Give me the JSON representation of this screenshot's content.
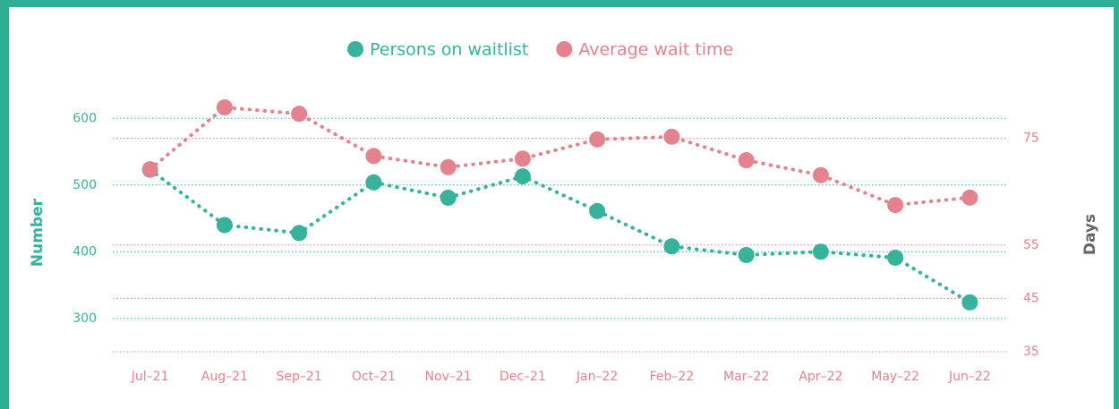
{
  "chart_data": {
    "type": "line",
    "categories": [
      "Jul–21",
      "Aug–21",
      "Sep–21",
      "Oct–21",
      "Nov–21",
      "Dec–21",
      "Jan–22",
      "Feb–22",
      "Mar–22",
      "Apr–22",
      "May–22",
      "Jun–22"
    ],
    "series": [
      {
        "name": "Persons on waitlist",
        "color": "#36b39a",
        "values": [
          523,
          440,
          428,
          504,
          481,
          513,
          461,
          408,
          395,
          400,
          391,
          324
        ]
      },
      {
        "name": "Average wait time",
        "color": "#e4828e",
        "axis": "y2",
        "values": [
          69.2,
          80.8,
          79.6,
          71.7,
          69.6,
          71.2,
          74.8,
          75.3,
          70.9,
          68.1,
          62.5,
          63.9
        ]
      }
    ],
    "y_label": "Number",
    "y2_label": "Days",
    "ylim": [
      250,
      650
    ],
    "yticks": [
      300,
      400,
      500,
      600
    ],
    "y2lim": [
      35,
      85
    ],
    "y2ticks": [
      35,
      45,
      55,
      75
    ],
    "grid": true,
    "legend": "top"
  }
}
